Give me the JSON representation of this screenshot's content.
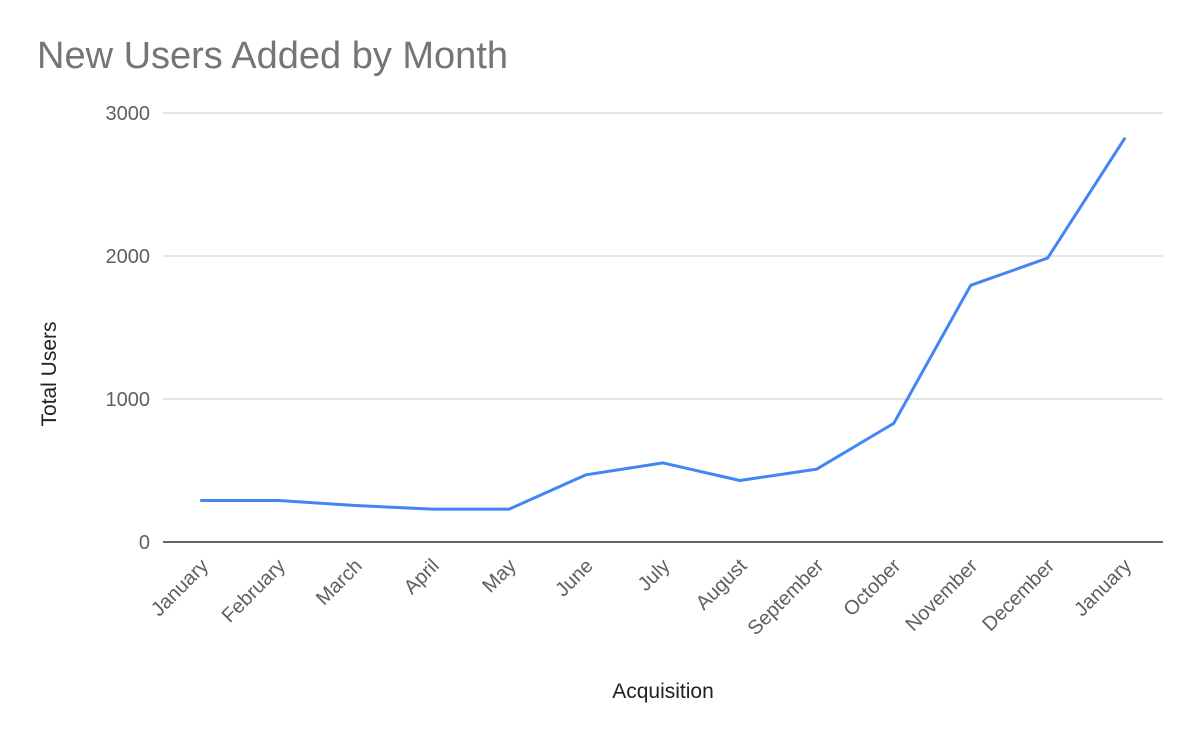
{
  "chart_data": {
    "type": "line",
    "title": "New Users Added by Month",
    "xlabel": "Acquisition",
    "ylabel": "Total Users",
    "categories": [
      "January",
      "February",
      "March",
      "April",
      "May",
      "June",
      "July",
      "August",
      "September",
      "October",
      "November",
      "December",
      "January"
    ],
    "series": [
      {
        "values": [
          290,
          290,
          255,
          230,
          230,
          470,
          553,
          430,
          510,
          830,
          1795,
          1985,
          2820
        ],
        "color": "#4285f4"
      }
    ],
    "ylim": [
      0,
      3000
    ],
    "yticks": [
      0,
      1000,
      2000,
      3000
    ],
    "grid": true,
    "legend": "none"
  }
}
